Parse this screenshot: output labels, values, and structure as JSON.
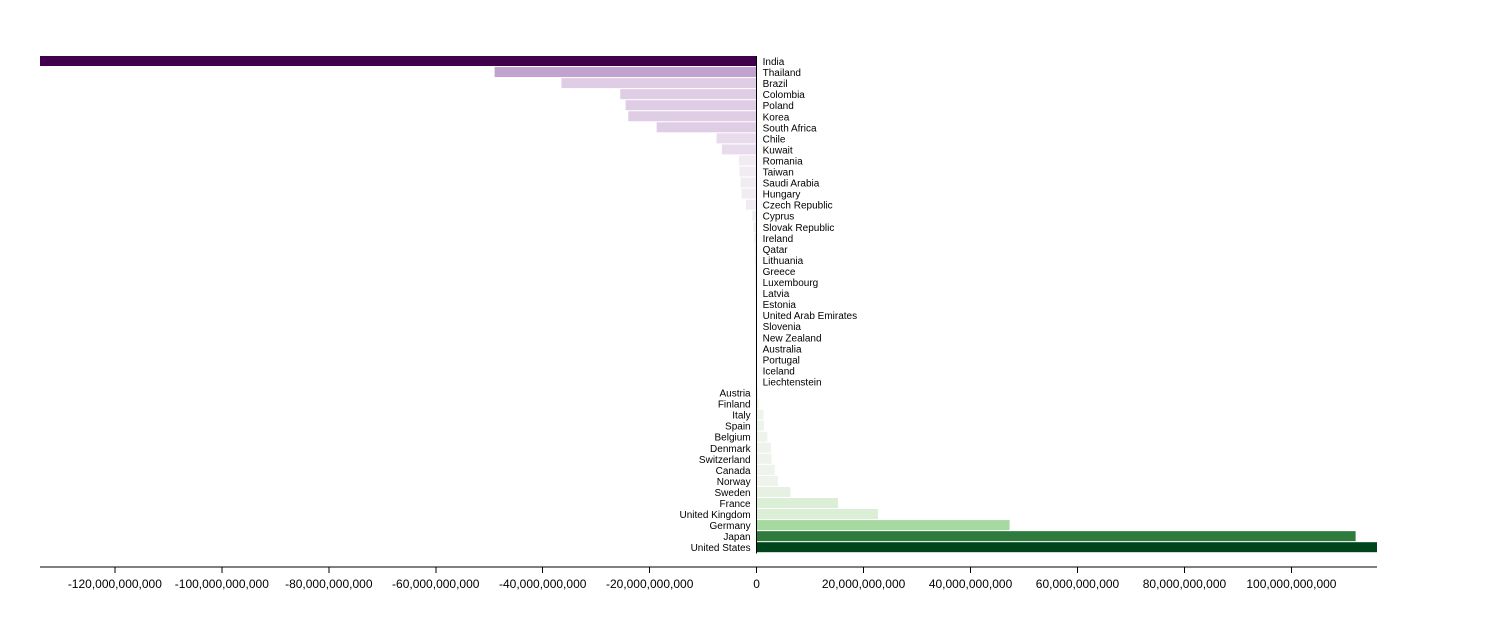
{
  "chart_data": {
    "type": "bar",
    "orientation": "horizontal",
    "title": "",
    "xlabel": "",
    "ylabel": "",
    "xlim": [
      -134000000000,
      116000000000
    ],
    "grid": false,
    "legend": "none",
    "categories": [
      "India",
      "Thailand",
      "Brazil",
      "Colombia",
      "Poland",
      "Korea",
      "South Africa",
      "Chile",
      "Kuwait",
      "Romania",
      "Taiwan",
      "Saudi Arabia",
      "Hungary",
      "Czech Republic",
      "Cyprus",
      "Slovak Republic",
      "Ireland",
      "Qatar",
      "Lithuania",
      "Greece",
      "Luxembourg",
      "Latvia",
      "Estonia",
      "United Arab Emirates",
      "Slovenia",
      "New Zealand",
      "Australia",
      "Portugal",
      "Iceland",
      "Liechtenstein",
      "Austria",
      "Finland",
      "Italy",
      "Spain",
      "Belgium",
      "Denmark",
      "Switzerland",
      "Canada",
      "Norway",
      "Sweden",
      "France",
      "United Kingdom",
      "Germany",
      "Japan",
      "United States"
    ],
    "values": [
      -134000000000,
      -49000000000,
      -36500000000,
      -25500000000,
      -24500000000,
      -24000000000,
      -18700000000,
      -7500000000,
      -6500000000,
      -3300000000,
      -3200000000,
      -3000000000,
      -2800000000,
      -2000000000,
      -800000000,
      -600000000,
      -450000000,
      -350000000,
      -300000000,
      -250000000,
      -200000000,
      -160000000,
      -130000000,
      -110000000,
      -90000000,
      -70000000,
      -50000000,
      -40000000,
      -20000000,
      -10000000,
      200000000,
      400000000,
      1300000000,
      1400000000,
      2000000000,
      2700000000,
      2800000000,
      3400000000,
      4000000000,
      6300000000,
      15200000000,
      22700000000,
      47300000000,
      112000000000,
      116000000000
    ],
    "x_ticks": [
      -120000000000,
      -100000000000,
      -80000000000,
      -60000000000,
      -40000000000,
      -20000000000,
      0,
      20000000000,
      40000000000,
      60000000000,
      80000000000,
      100000000000
    ],
    "x_tick_labels": [
      "-120,000,000,000",
      "-100,000,000,000",
      "-80,000,000,000",
      "-60,000,000,000",
      "-40,000,000,000",
      "-20,000,000,000",
      "0",
      "20,000,000,000",
      "40,000,000,000",
      "60,000,000,000",
      "80,000,000,000",
      "100,000,000,000"
    ],
    "colors": {
      "negative_ramp": [
        "#f0ecf2",
        "#e8dcec",
        "#dfcde6",
        "#c1a3d0",
        "#9f75b7",
        "#40004b"
      ],
      "positive_ramp": [
        "#eef3ec",
        "#e6f0e3",
        "#dbeed6",
        "#a6d9a0",
        "#2f7b3e",
        "#00441b"
      ],
      "axis": "#000000"
    }
  }
}
